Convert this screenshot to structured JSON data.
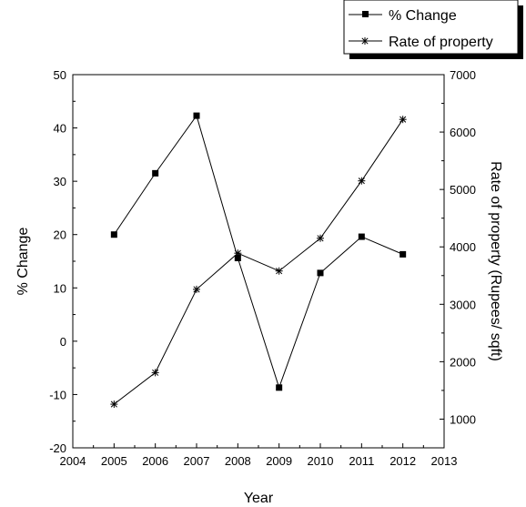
{
  "chart_data": {
    "type": "line",
    "xlabel": "Year",
    "x_ticks": [
      2004,
      2005,
      2006,
      2007,
      2008,
      2009,
      2010,
      2011,
      2012,
      2013
    ],
    "xlim": [
      2004,
      2013
    ],
    "y_left": {
      "label": "% Change",
      "ylim": [
        -20,
        50
      ],
      "ticks": [
        -20,
        -10,
        0,
        10,
        20,
        30,
        40,
        50
      ]
    },
    "y_right": {
      "label": "Rate of property (Rupees/ sqft)",
      "ylim": [
        500,
        7000
      ],
      "ticks": [
        1000,
        2000,
        3000,
        4000,
        5000,
        6000,
        7000
      ]
    },
    "x": [
      2005,
      2006,
      2007,
      2008,
      2009,
      2010,
      2011,
      2012
    ],
    "series": [
      {
        "name": "% Change",
        "axis": "left",
        "marker": "square",
        "values": [
          20,
          31.5,
          42.3,
          15.6,
          -8.7,
          12.8,
          19.6,
          16.3
        ]
      },
      {
        "name": "Rate of property",
        "axis": "right",
        "marker": "asterisk",
        "values": [
          1260,
          1810,
          3260,
          3890,
          3580,
          4150,
          5150,
          6220
        ]
      }
    ],
    "legend_position": "top-right",
    "grid": false,
    "colors": {
      "line": "#000000",
      "background": "#ffffff"
    }
  }
}
